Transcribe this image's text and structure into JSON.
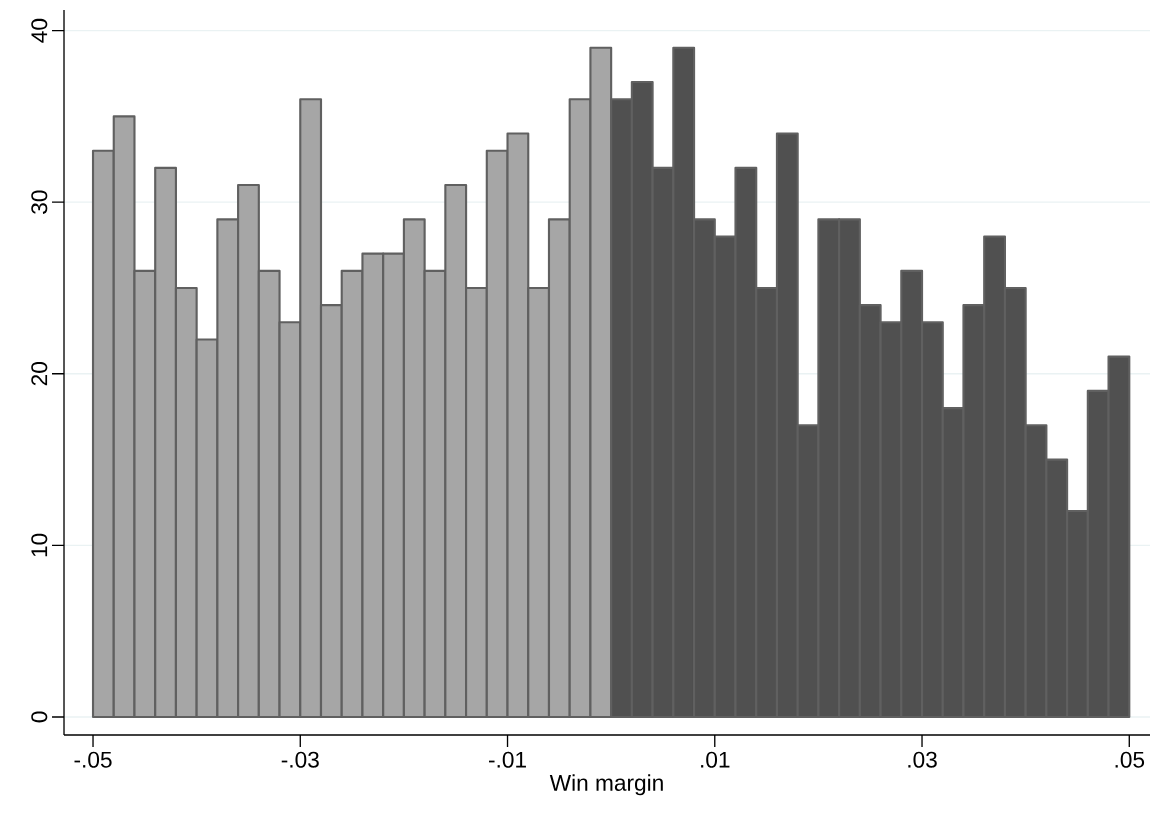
{
  "chart_data": {
    "type": "histogram",
    "xlabel": "Win margin",
    "bins": [
      -0.05,
      -0.048,
      -0.046,
      -0.044,
      -0.042,
      -0.04,
      -0.038,
      -0.036,
      -0.034,
      -0.032,
      -0.03,
      -0.028,
      -0.026,
      -0.024,
      -0.022,
      -0.02,
      -0.018,
      -0.016,
      -0.014,
      -0.012,
      -0.01,
      -0.008,
      -0.006,
      -0.004,
      -0.002,
      0,
      0.002,
      0.004,
      0.006,
      0.008,
      0.01,
      0.012,
      0.014,
      0.016,
      0.018,
      0.02,
      0.022,
      0.024,
      0.026,
      0.028,
      0.03,
      0.032,
      0.034,
      0.036,
      0.038,
      0.04,
      0.042,
      0.044,
      0.046,
      0.048,
      0.05
    ],
    "values": [
      33,
      35,
      26,
      32,
      25,
      22,
      29,
      31,
      26,
      23,
      36,
      24,
      26,
      27,
      27,
      29,
      26,
      31,
      25,
      33,
      34,
      25,
      29,
      36,
      39,
      36,
      37,
      32,
      39,
      29,
      28,
      32,
      25,
      34,
      17,
      29,
      29,
      24,
      23,
      26,
      23,
      18,
      24,
      28,
      25,
      17,
      15,
      12,
      19,
      21
    ],
    "colors": [
      "#a6a6a6",
      "#a6a6a6",
      "#a6a6a6",
      "#a6a6a6",
      "#a6a6a6",
      "#a6a6a6",
      "#a6a6a6",
      "#a6a6a6",
      "#a6a6a6",
      "#a6a6a6",
      "#a6a6a6",
      "#a6a6a6",
      "#a6a6a6",
      "#a6a6a6",
      "#a6a6a6",
      "#a6a6a6",
      "#a6a6a6",
      "#a6a6a6",
      "#a6a6a6",
      "#a6a6a6",
      "#a6a6a6",
      "#a6a6a6",
      "#a6a6a6",
      "#a6a6a6",
      "#a6a6a6",
      "#505050",
      "#505050",
      "#505050",
      "#505050",
      "#505050",
      "#505050",
      "#505050",
      "#505050",
      "#505050",
      "#505050",
      "#505050",
      "#505050",
      "#505050",
      "#505050",
      "#505050",
      "#505050",
      "#505050",
      "#505050",
      "#505050",
      "#505050",
      "#505050",
      "#505050",
      "#505050",
      "#505050",
      "#505050"
    ],
    "xlim": [
      -0.0528,
      0.052
    ],
    "ylim": [
      -1.05,
      41.2
    ],
    "xticks": [
      {
        "value": -0.05,
        "label": "-.05"
      },
      {
        "value": -0.03,
        "label": "-.03"
      },
      {
        "value": -0.01,
        "label": "-.01"
      },
      {
        "value": 0.01,
        "label": ".01"
      },
      {
        "value": 0.03,
        "label": ".03"
      },
      {
        "value": 0.05,
        "label": ".05"
      }
    ],
    "yticks": [
      0,
      10,
      20,
      30,
      40
    ],
    "grid": "y"
  }
}
